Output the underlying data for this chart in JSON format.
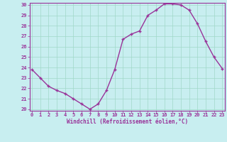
{
  "x": [
    0,
    1,
    2,
    3,
    4,
    5,
    6,
    7,
    8,
    9,
    10,
    11,
    12,
    13,
    14,
    15,
    16,
    17,
    18,
    19,
    20,
    21,
    22,
    23
  ],
  "y": [
    23.8,
    23.0,
    22.2,
    21.8,
    21.5,
    21.0,
    20.5,
    20.0,
    20.5,
    21.8,
    23.8,
    26.7,
    27.2,
    27.5,
    29.0,
    29.5,
    30.1,
    30.1,
    30.0,
    29.5,
    28.2,
    26.5,
    25.0,
    23.9
  ],
  "line_color": "#993399",
  "bg_color": "#c8eef0",
  "grid_color": "#a0d8c8",
  "xlabel": "Windchill (Refroidissement éolien,°C)",
  "xlabel_color": "#993399",
  "tick_color": "#993399",
  "spine_color": "#993399",
  "ylim_min": 20,
  "ylim_max": 30,
  "xlim_min": 0,
  "xlim_max": 23,
  "yticks": [
    20,
    21,
    22,
    23,
    24,
    25,
    26,
    27,
    28,
    29,
    30
  ],
  "xticks": [
    0,
    1,
    2,
    3,
    4,
    5,
    6,
    7,
    8,
    9,
    10,
    11,
    12,
    13,
    14,
    15,
    16,
    17,
    18,
    19,
    20,
    21,
    22,
    23
  ],
  "tick_fontsize": 5,
  "xlabel_fontsize": 5.5,
  "linewidth": 1.0,
  "markersize": 3.5
}
